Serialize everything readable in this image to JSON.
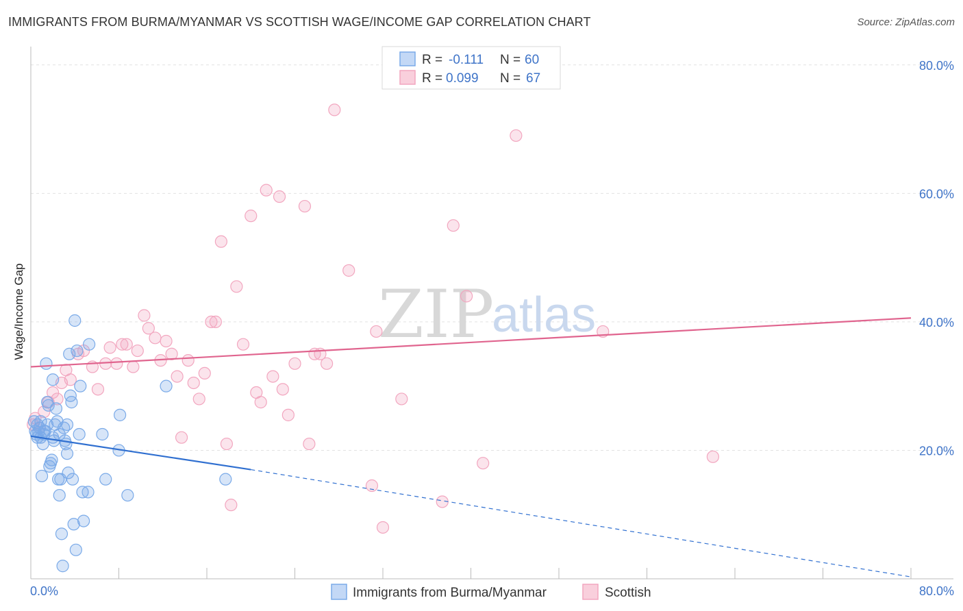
{
  "title": "IMMIGRANTS FROM BURMA/MYANMAR VS SCOTTISH WAGE/INCOME GAP CORRELATION CHART",
  "source": "Source: ZipAtlas.com",
  "watermark": {
    "zip": "ZIP",
    "atlas": "atlas"
  },
  "colors": {
    "blue": "#7aaae8",
    "blue_line": "#2f6fd0",
    "pink": "#f2a6bf",
    "pink_line": "#e0648e",
    "axis_text": "#3f74c8"
  },
  "legend_top": {
    "series": [
      {
        "r_label": "R =",
        "r_value": "-0.111",
        "n_label": "N =",
        "n_value": "60"
      },
      {
        "r_label": "R =",
        "r_value": "0.099",
        "n_label": "N =",
        "n_value": "67"
      }
    ]
  },
  "chart_data": {
    "type": "scatter",
    "title": "IMMIGRANTS FROM BURMA/MYANMAR VS SCOTTISH WAGE/INCOME GAP CORRELATION CHART",
    "xlabel": "",
    "ylabel": "Wage/Income Gap",
    "xlim": [
      0,
      80
    ],
    "ylim": [
      0,
      82
    ],
    "x_tick_labels": [
      "0.0%",
      "80.0%"
    ],
    "y_ticks": [
      20,
      40,
      60,
      80
    ],
    "y_tick_labels": [
      "20.0%",
      "40.0%",
      "60.0%",
      "80.0%"
    ],
    "series": [
      {
        "name": "Immigrants from Burma/Myanmar",
        "color": "#7aaae8",
        "trend": {
          "x0": 0,
          "y0": 22.2,
          "x1": 20,
          "y1": 17.0,
          "dash_to_x": 80,
          "dash_to_y": 0.3
        },
        "points": [
          [
            0.3,
            24.5
          ],
          [
            0.4,
            23.0
          ],
          [
            0.5,
            22.5
          ],
          [
            0.6,
            24.0
          ],
          [
            0.7,
            22.8
          ],
          [
            0.8,
            23.5
          ],
          [
            0.9,
            22.0
          ],
          [
            1.0,
            16.0
          ],
          [
            1.1,
            21.0
          ],
          [
            1.2,
            22.5
          ],
          [
            1.3,
            23.0
          ],
          [
            1.4,
            33.5
          ],
          [
            1.5,
            27.5
          ],
          [
            1.6,
            27.0
          ],
          [
            1.7,
            17.5
          ],
          [
            1.8,
            18.0
          ],
          [
            1.9,
            18.5
          ],
          [
            2.0,
            22.0
          ],
          [
            2.1,
            21.5
          ],
          [
            2.2,
            24.0
          ],
          [
            2.3,
            26.5
          ],
          [
            2.4,
            24.5
          ],
          [
            2.5,
            15.5
          ],
          [
            2.6,
            13.0
          ],
          [
            2.7,
            15.5
          ],
          [
            2.8,
            7.0
          ],
          [
            2.9,
            2.0
          ],
          [
            3.0,
            23.5
          ],
          [
            3.1,
            21.5
          ],
          [
            3.2,
            21.0
          ],
          [
            3.3,
            19.5
          ],
          [
            3.4,
            16.5
          ],
          [
            3.5,
            35.0
          ],
          [
            3.6,
            28.5
          ],
          [
            3.7,
            27.5
          ],
          [
            3.8,
            15.5
          ],
          [
            3.9,
            8.5
          ],
          [
            4.0,
            40.2
          ],
          [
            4.1,
            4.5
          ],
          [
            4.2,
            35.5
          ],
          [
            4.4,
            22.5
          ],
          [
            4.5,
            30.0
          ],
          [
            4.7,
            13.5
          ],
          [
            4.8,
            9.0
          ],
          [
            5.2,
            13.5
          ],
          [
            5.3,
            36.5
          ],
          [
            6.5,
            22.5
          ],
          [
            6.8,
            15.5
          ],
          [
            8.0,
            20.0
          ],
          [
            8.1,
            25.5
          ],
          [
            8.8,
            13.0
          ],
          [
            12.3,
            30.0
          ],
          [
            17.7,
            15.5
          ],
          [
            2.0,
            31.0
          ],
          [
            1.2,
            23.0
          ],
          [
            0.6,
            22.0
          ],
          [
            0.9,
            24.5
          ],
          [
            1.5,
            24.0
          ],
          [
            2.6,
            22.5
          ],
          [
            3.3,
            24.0
          ]
        ]
      },
      {
        "name": "Scottish",
        "color": "#f2a6bf",
        "trend": {
          "x0": 0,
          "y0": 33.0,
          "x1": 80,
          "y1": 40.6
        },
        "points": [
          [
            0.2,
            24.0
          ],
          [
            0.4,
            25.0
          ],
          [
            0.8,
            23.5
          ],
          [
            1.2,
            26.0
          ],
          [
            1.6,
            27.5
          ],
          [
            2.0,
            29.0
          ],
          [
            2.4,
            28.0
          ],
          [
            2.8,
            30.5
          ],
          [
            3.2,
            32.5
          ],
          [
            3.6,
            31.0
          ],
          [
            4.3,
            35.0
          ],
          [
            4.8,
            35.5
          ],
          [
            5.6,
            33.0
          ],
          [
            6.1,
            29.5
          ],
          [
            6.8,
            33.5
          ],
          [
            7.2,
            36.0
          ],
          [
            7.8,
            33.5
          ],
          [
            8.3,
            36.5
          ],
          [
            8.7,
            36.5
          ],
          [
            9.3,
            33.0
          ],
          [
            9.7,
            35.5
          ],
          [
            10.3,
            41.0
          ],
          [
            10.7,
            39.0
          ],
          [
            11.3,
            37.5
          ],
          [
            11.8,
            34.0
          ],
          [
            12.3,
            37.0
          ],
          [
            12.8,
            35.0
          ],
          [
            13.3,
            31.5
          ],
          [
            13.7,
            22.0
          ],
          [
            14.3,
            34.0
          ],
          [
            14.8,
            30.5
          ],
          [
            15.3,
            28.0
          ],
          [
            15.8,
            32.0
          ],
          [
            16.4,
            40.0
          ],
          [
            16.8,
            40.0
          ],
          [
            17.3,
            52.5
          ],
          [
            17.8,
            21.0
          ],
          [
            18.2,
            11.5
          ],
          [
            18.7,
            45.5
          ],
          [
            19.3,
            36.5
          ],
          [
            20.0,
            56.5
          ],
          [
            20.5,
            29.0
          ],
          [
            20.9,
            27.5
          ],
          [
            21.4,
            60.5
          ],
          [
            22.0,
            31.5
          ],
          [
            22.6,
            59.5
          ],
          [
            22.9,
            29.5
          ],
          [
            23.4,
            25.5
          ],
          [
            24.0,
            33.5
          ],
          [
            24.9,
            58.0
          ],
          [
            25.3,
            21.0
          ],
          [
            25.8,
            35.0
          ],
          [
            26.3,
            35.0
          ],
          [
            26.9,
            33.5
          ],
          [
            27.6,
            73.0
          ],
          [
            28.9,
            48.0
          ],
          [
            31.0,
            14.5
          ],
          [
            31.4,
            38.5
          ],
          [
            32.0,
            8.0
          ],
          [
            33.7,
            28.0
          ],
          [
            37.4,
            12.0
          ],
          [
            38.4,
            55.0
          ],
          [
            39.6,
            44.0
          ],
          [
            41.1,
            18.0
          ],
          [
            44.1,
            69.0
          ],
          [
            52.0,
            38.5
          ],
          [
            62.0,
            19.0
          ]
        ]
      }
    ],
    "legend": [
      "Immigrants from Burma/Myanmar",
      "Scottish"
    ]
  }
}
